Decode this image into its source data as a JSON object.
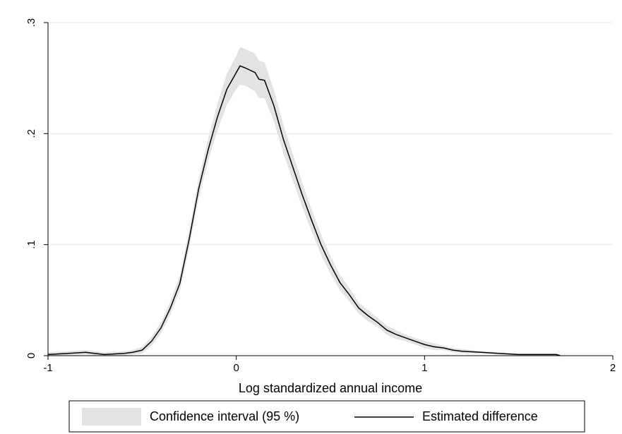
{
  "chart_data": {
    "type": "line",
    "x_label": "Log standardized annual income",
    "x": [
      -1,
      -0.9,
      -0.8,
      -0.75,
      -0.7,
      -0.6,
      -0.55,
      -0.5,
      -0.45,
      -0.4,
      -0.35,
      -0.3,
      -0.25,
      -0.2,
      -0.15,
      -0.1,
      -0.05,
      0,
      0.02,
      0.05,
      0.1,
      0.12,
      0.15,
      0.2,
      0.25,
      0.3,
      0.35,
      0.4,
      0.45,
      0.5,
      0.55,
      0.6,
      0.65,
      0.7,
      0.75,
      0.8,
      0.85,
      0.9,
      0.95,
      1,
      1.05,
      1.1,
      1.15,
      1.2,
      1.3,
      1.4,
      1.5,
      1.6,
      1.7,
      1.72
    ],
    "series": [
      {
        "name": "Confidence interval (95 %)",
        "color": "#e3e3e3",
        "lower": [
          0,
          0,
          0.001,
          0,
          0,
          0,
          0.001,
          0.002,
          0.009,
          0.02,
          0.037,
          0.058,
          0.097,
          0.141,
          0.175,
          0.203,
          0.226,
          0.24,
          0.244,
          0.243,
          0.238,
          0.232,
          0.232,
          0.211,
          0.182,
          0.158,
          0.134,
          0.112,
          0.091,
          0.074,
          0.059,
          0.049,
          0.038,
          0.031,
          0.026,
          0.019,
          0.015,
          0.013,
          0.01,
          0.007,
          0.005,
          0.005,
          0.003,
          0.002,
          0.002,
          0.001,
          0,
          0,
          0,
          0
        ],
        "upper": [
          0.003,
          0.004,
          0.005,
          0.004,
          0.003,
          0.004,
          0.005,
          0.008,
          0.017,
          0.03,
          0.049,
          0.072,
          0.113,
          0.159,
          0.195,
          0.227,
          0.254,
          0.27,
          0.278,
          0.276,
          0.272,
          0.266,
          0.264,
          0.239,
          0.208,
          0.182,
          0.156,
          0.132,
          0.109,
          0.09,
          0.073,
          0.061,
          0.048,
          0.041,
          0.034,
          0.027,
          0.023,
          0.019,
          0.016,
          0.013,
          0.011,
          0.009,
          0.007,
          0.006,
          0.004,
          0.003,
          0.002,
          0.002,
          0.002,
          0.001
        ]
      },
      {
        "name": "Estimated difference",
        "color": "#000000",
        "values": [
          0.001,
          0.002,
          0.003,
          0.002,
          0.001,
          0.002,
          0.003,
          0.005,
          0.013,
          0.025,
          0.043,
          0.065,
          0.105,
          0.15,
          0.185,
          0.215,
          0.24,
          0.255,
          0.261,
          0.259,
          0.255,
          0.249,
          0.248,
          0.225,
          0.195,
          0.17,
          0.145,
          0.122,
          0.1,
          0.082,
          0.066,
          0.055,
          0.043,
          0.036,
          0.03,
          0.023,
          0.019,
          0.016,
          0.013,
          0.01,
          0.008,
          0.007,
          0.005,
          0.004,
          0.003,
          0.002,
          0.001,
          0.001,
          0.001,
          0
        ]
      }
    ],
    "xlim": [
      -1,
      2
    ],
    "xticks": [
      -1,
      0,
      1,
      2
    ],
    "ylim": [
      0,
      0.3
    ],
    "yticks": [
      0,
      {
        "value": 0.1,
        "label": ".1"
      },
      {
        "value": 0.2,
        "label": ".2"
      },
      {
        "value": 0.3,
        "label": ".3"
      }
    ],
    "grid": true
  }
}
